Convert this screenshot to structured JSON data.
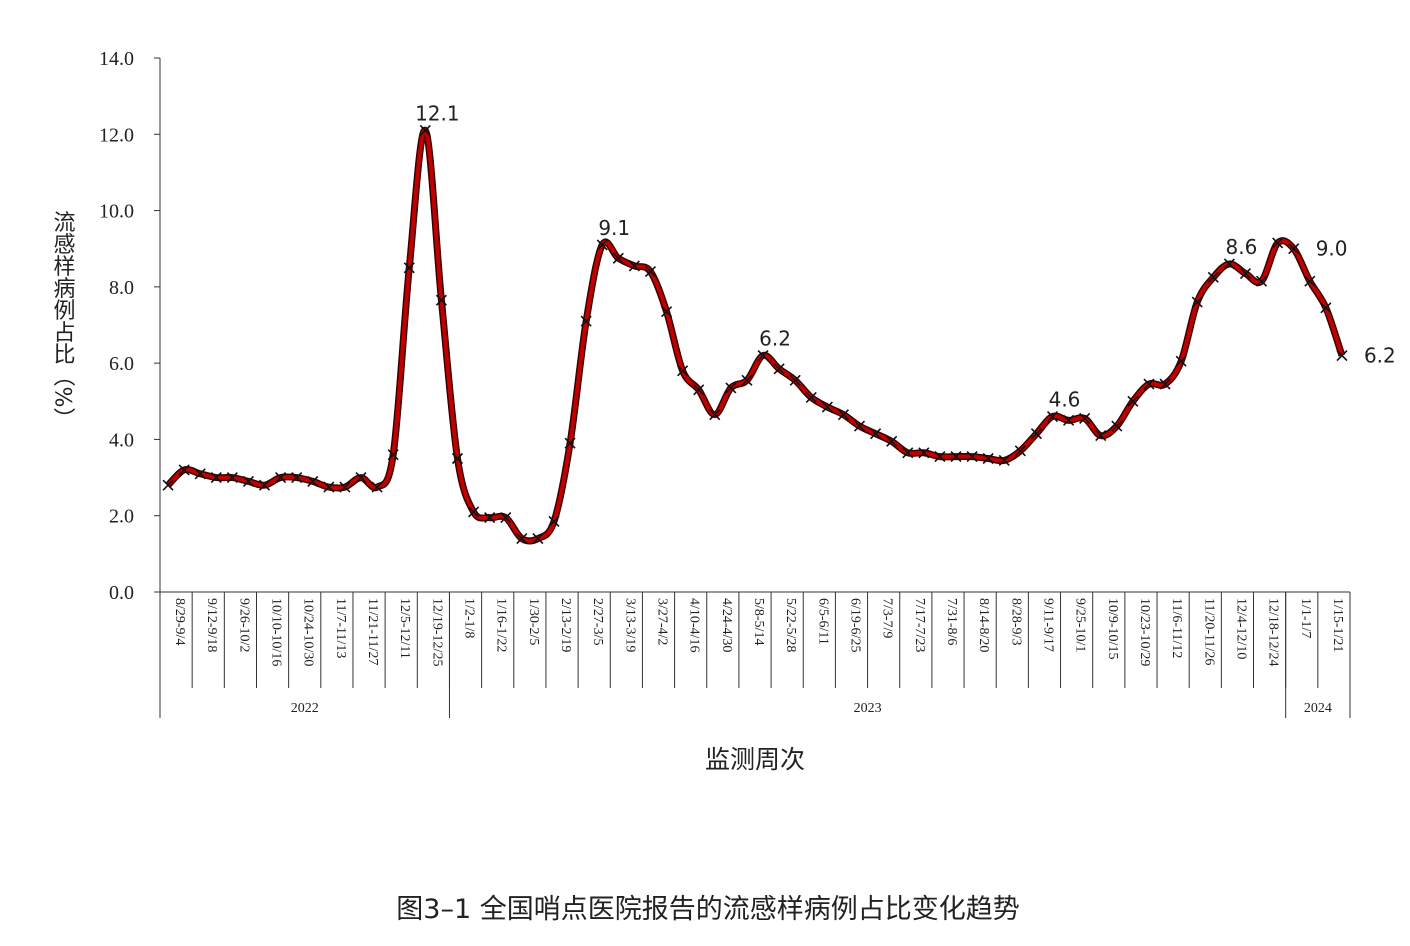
{
  "chart_data": {
    "type": "line",
    "caption": "图3–1 全国哨点医院报告的流感样病例占比变化趋势",
    "y_label": "流感样病例占比（%）",
    "x_label": "监测周次",
    "categories": [
      "8/29-9/4",
      null,
      "9/12-9/18",
      null,
      "9/26-10/2",
      null,
      "10/10-10/16",
      null,
      "10/24-10/30",
      null,
      "11/7-11/13",
      null,
      "11/21-11/27",
      null,
      "12/5-12/11",
      null,
      "12/19-12/25",
      null,
      "1/2-1/8",
      null,
      "1/16-1/22",
      null,
      "1/30-2/5",
      null,
      "2/13-2/19",
      null,
      "2/27-3/5",
      null,
      "3/13-3/19",
      null,
      "3/27-4/2",
      null,
      "4/10-4/16",
      null,
      "4/24-4/30",
      null,
      "5/8-5/14",
      null,
      "5/22-5/28",
      null,
      "6/5-6/11",
      null,
      "6/19-6/25",
      null,
      "7/3-7/9",
      null,
      "7/17-7/23",
      null,
      "7/31-8/6",
      null,
      "8/14-8/20",
      null,
      "8/28-9/3",
      null,
      "9/11-9/17",
      null,
      "9/25-10/1",
      null,
      "10/9-10/15",
      null,
      "10/23-10/29",
      null,
      "11/6-11/12",
      null,
      "11/20-11/26",
      null,
      "12/4-12/10",
      null,
      "12/18-12/24",
      null,
      "1/1-1/7",
      null,
      "1/15-1/21",
      null
    ],
    "groups": [
      {
        "label": "2022",
        "span": 18
      },
      {
        "label": "2023",
        "span": 52
      },
      {
        "label": "2024",
        "span": 4
      }
    ],
    "values": [
      2.8,
      3.2,
      3.1,
      3.0,
      3.0,
      2.9,
      2.8,
      3.0,
      3.0,
      2.9,
      2.75,
      2.75,
      3.0,
      2.75,
      3.6,
      8.5,
      12.1,
      7.65,
      3.5,
      2.1,
      1.95,
      1.95,
      1.4,
      1.4,
      1.85,
      3.9,
      7.1,
      9.1,
      8.75,
      8.55,
      8.4,
      7.35,
      5.8,
      5.3,
      4.65,
      5.35,
      5.55,
      6.2,
      5.85,
      5.55,
      5.1,
      4.85,
      4.65,
      4.35,
      4.15,
      3.95,
      3.65,
      3.65,
      3.55,
      3.55,
      3.55,
      3.5,
      3.45,
      3.7,
      4.15,
      4.6,
      4.5,
      4.55,
      4.1,
      4.35,
      5.0,
      5.45,
      5.45,
      6.05,
      7.6,
      8.25,
      8.6,
      8.35,
      8.15,
      9.15,
      9.0,
      8.15,
      7.45,
      6.2
    ],
    "value_labels": [
      null,
      null,
      null,
      null,
      null,
      null,
      null,
      null,
      null,
      null,
      null,
      null,
      null,
      null,
      null,
      null,
      "12.1",
      null,
      null,
      null,
      null,
      null,
      null,
      null,
      null,
      null,
      null,
      "9.1",
      null,
      null,
      null,
      null,
      null,
      null,
      null,
      null,
      null,
      "6.2",
      null,
      null,
      null,
      null,
      null,
      null,
      null,
      null,
      null,
      null,
      null,
      null,
      null,
      null,
      null,
      null,
      null,
      "4.6",
      null,
      null,
      null,
      null,
      null,
      null,
      null,
      null,
      null,
      null,
      "8.6",
      null,
      null,
      null,
      "9.0",
      null,
      null,
      "6.2"
    ],
    "color": "#c00000",
    "ylim": [
      0,
      14
    ],
    "yticks": [
      {
        "value": 0,
        "label": "0.0"
      },
      {
        "value": 2,
        "label": "2.0"
      },
      {
        "value": 4,
        "label": "4.0"
      },
      {
        "value": 6,
        "label": "6.0"
      },
      {
        "value": 8,
        "label": "8.0"
      },
      {
        "value": 10,
        "label": "10.0"
      },
      {
        "value": 12,
        "label": "12.0"
      },
      {
        "value": 14,
        "label": "14.0"
      }
    ]
  }
}
